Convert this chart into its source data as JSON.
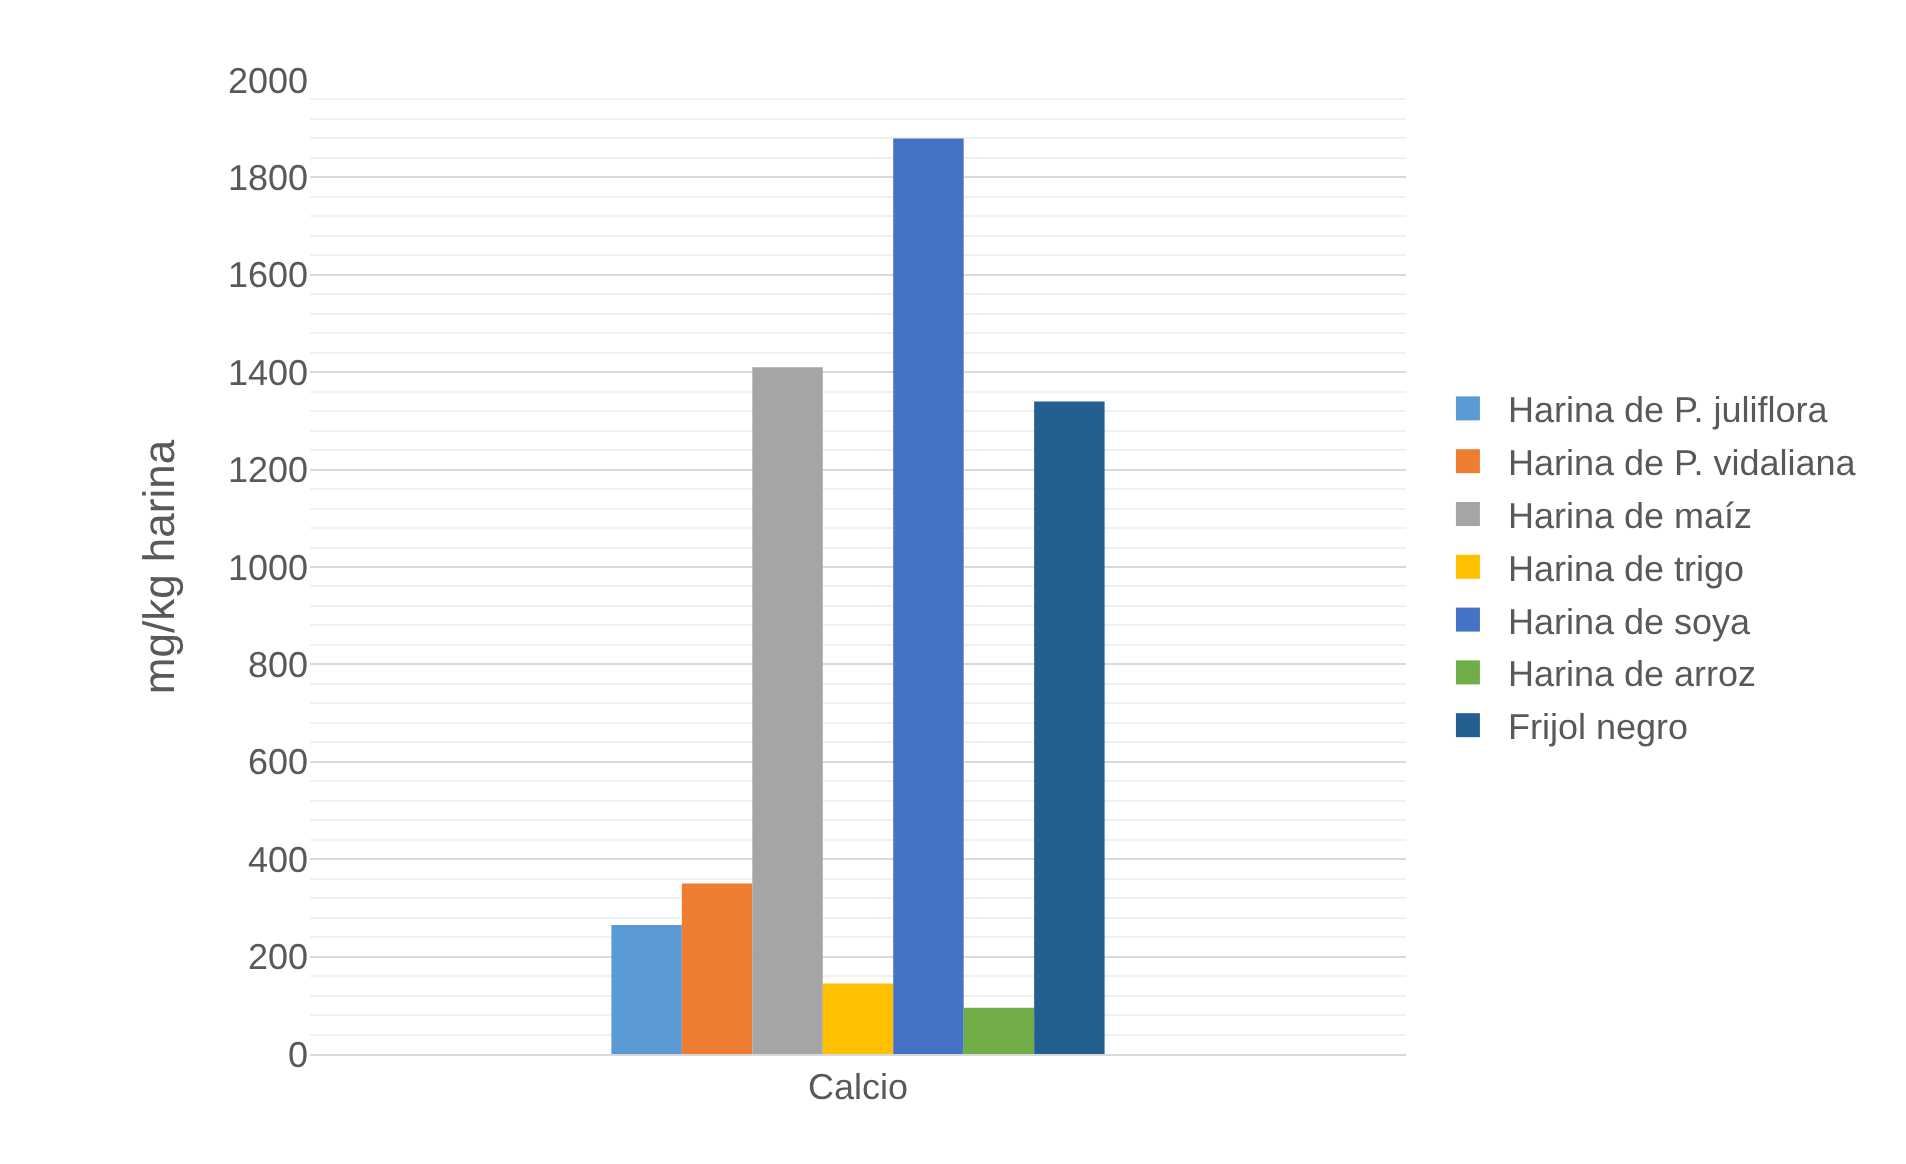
{
  "chart_data": {
    "type": "bar",
    "ylabel": "mg/kg harina",
    "categories": [
      "Calcio"
    ],
    "series": [
      {
        "name": "Harina de P. juliflora",
        "color": "#5b9bd5",
        "values": [
          265
        ]
      },
      {
        "name": "Harina de P. vidaliana",
        "color": "#ed7d31",
        "values": [
          350
        ]
      },
      {
        "name": "Harina de maíz",
        "color": "#a5a5a5",
        "values": [
          1410
        ]
      },
      {
        "name": "Harina de trigo",
        "color": "#ffc000",
        "values": [
          145
        ]
      },
      {
        "name": "Harina de soya",
        "color": "#4472c4",
        "values": [
          1880
        ]
      },
      {
        "name": "Harina de arroz",
        "color": "#70ad47",
        "values": [
          95
        ]
      },
      {
        "name": "Frijol negro",
        "color": "#255e91",
        "values": [
          1340
        ]
      }
    ],
    "ylim": [
      0,
      2000
    ],
    "yticks": [
      0,
      200,
      400,
      600,
      800,
      1000,
      1200,
      1400,
      1600,
      1800,
      2000
    ],
    "grid": true,
    "legend": "right"
  }
}
